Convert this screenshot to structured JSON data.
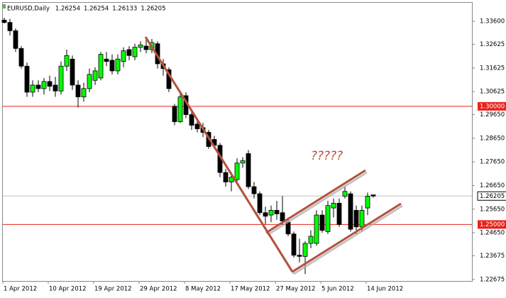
{
  "chart_data": {
    "type": "candlestick",
    "title": "EURUSD,Daily",
    "annotation": "?????",
    "categories": [
      "1 Apr 2012",
      null,
      null,
      null,
      null,
      null,
      null,
      null,
      "10 Apr 2012",
      null,
      null,
      null,
      null,
      null,
      null,
      null,
      "19 Apr 2012",
      null,
      null,
      null,
      null,
      null,
      null,
      null,
      "29 Apr 2012",
      null,
      null,
      null,
      null,
      null,
      null,
      null,
      "8 May 2012",
      null,
      null,
      null,
      null,
      null,
      null,
      null,
      "17 May 2012",
      null,
      null,
      null,
      null,
      null,
      null,
      null,
      "27 May 2012",
      null,
      null,
      null,
      null,
      null,
      null,
      null,
      "5 Jun 2012",
      null,
      null,
      null,
      null,
      null,
      null,
      null,
      "14 Jun 2012",
      null
    ],
    "open": [
      1.3365,
      1.3355,
      1.332,
      1.3245,
      1.317,
      1.306,
      1.309,
      1.3075,
      1.3105,
      1.309,
      1.3065,
      1.317,
      1.32,
      1.309,
      1.304,
      1.3075,
      1.311,
      1.312,
      1.32,
      1.3195,
      1.315,
      1.319,
      1.324,
      1.321,
      1.325,
      1.3255,
      1.324,
      1.3265,
      1.318,
      1.3155,
      1.3,
      1.2935,
      1.3045,
      1.2965,
      1.2925,
      1.291,
      1.289,
      1.286,
      1.2835,
      1.272,
      1.268,
      1.269,
      1.276,
      1.28,
      1.266,
      1.263,
      1.255,
      1.254,
      1.256,
      1.255,
      1.251,
      1.246,
      1.237,
      1.2365,
      1.242,
      1.242,
      1.254,
      1.247,
      1.257,
      1.259,
      1.262,
      1.263,
      1.256,
      1.249,
      1.257,
      1.26254
    ],
    "high": [
      1.3375,
      1.337,
      1.333,
      1.3255,
      1.3185,
      1.311,
      1.311,
      1.312,
      1.313,
      1.3125,
      1.319,
      1.324,
      1.3215,
      1.311,
      1.31,
      1.316,
      1.3165,
      1.323,
      1.323,
      1.322,
      1.322,
      1.325,
      1.3255,
      1.3265,
      1.3275,
      1.3295,
      1.3285,
      1.3275,
      1.32,
      1.3165,
      1.301,
      1.306,
      1.306,
      1.299,
      1.295,
      1.293,
      1.29,
      1.2875,
      1.2845,
      1.2735,
      1.272,
      1.278,
      1.2785,
      1.2815,
      1.268,
      1.264,
      1.2575,
      1.258,
      1.26,
      1.262,
      1.253,
      1.247,
      1.244,
      1.243,
      1.2475,
      1.256,
      1.256,
      1.26,
      1.261,
      1.261,
      1.266,
      1.264,
      1.258,
      1.258,
      1.2635,
      1.26254
    ],
    "low": [
      1.335,
      1.33,
      1.323,
      1.316,
      1.304,
      1.304,
      1.306,
      1.305,
      1.3065,
      1.304,
      1.305,
      1.315,
      1.307,
      1.2995,
      1.302,
      1.306,
      1.309,
      1.311,
      1.317,
      1.3135,
      1.3135,
      1.3165,
      1.3195,
      1.3195,
      1.323,
      1.3225,
      1.3225,
      1.316,
      1.313,
      1.306,
      1.292,
      1.293,
      1.295,
      1.29,
      1.289,
      1.287,
      1.282,
      1.282,
      1.27,
      1.266,
      1.264,
      1.267,
      1.274,
      1.265,
      1.261,
      1.254,
      1.25,
      1.251,
      1.252,
      1.25,
      1.245,
      1.236,
      1.234,
      1.229,
      1.24,
      1.241,
      1.2465,
      1.246,
      1.253,
      1.249,
      1.261,
      1.247,
      1.246,
      1.247,
      1.254,
      1.26133
    ],
    "close": [
      1.3355,
      1.332,
      1.3245,
      1.317,
      1.306,
      1.309,
      1.3075,
      1.3105,
      1.3085,
      1.3065,
      1.317,
      1.3215,
      1.309,
      1.304,
      1.3075,
      1.3135,
      1.315,
      1.322,
      1.319,
      1.315,
      1.32,
      1.3235,
      1.3215,
      1.325,
      1.326,
      1.324,
      1.327,
      1.318,
      1.316,
      1.3075,
      1.2935,
      1.304,
      1.2965,
      1.292,
      1.2905,
      1.289,
      1.283,
      1.2835,
      1.272,
      1.268,
      1.27,
      1.276,
      1.277,
      1.266,
      1.263,
      1.255,
      1.2535,
      1.256,
      1.2545,
      1.2515,
      1.246,
      1.237,
      1.2365,
      1.242,
      1.245,
      1.254,
      1.2475,
      1.258,
      1.259,
      1.25,
      1.264,
      1.248,
      1.249,
      1.256,
      1.262,
      1.26205
    ],
    "up_color": "#00ff00",
    "down_color": "#000000",
    "ylim": [
      1.2261,
      1.3435
    ],
    "yticks": [
      {
        "value": 1.336,
        "label": "1.33600"
      },
      {
        "value": 1.32625,
        "label": "1.32625"
      },
      {
        "value": 1.31625,
        "label": "1.31625"
      },
      {
        "value": 1.30625,
        "label": "1.30625"
      },
      {
        "value": 1.2965,
        "label": "1.29650"
      },
      {
        "value": 1.2865,
        "label": "1.28650"
      },
      {
        "value": 1.2765,
        "label": "1.27650"
      },
      {
        "value": 1.2665,
        "label": "1.26650"
      },
      {
        "value": 1.2565,
        "label": "1.25650"
      },
      {
        "value": 1.2465,
        "label": "1.24650"
      },
      {
        "value": 1.23675,
        "label": "1.23675"
      },
      {
        "value": 1.22675,
        "label": "1.22675"
      }
    ],
    "hlines": [
      {
        "value": 1.3,
        "label": "1.30000"
      },
      {
        "value": 1.25,
        "label": "1.25000"
      }
    ],
    "hline_color": "#e8221c"
  }
}
